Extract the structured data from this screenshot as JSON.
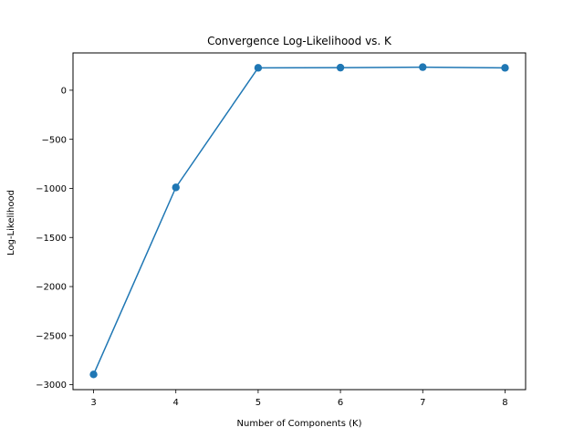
{
  "chart_data": {
    "type": "line",
    "title": "Convergence Log-Likelihood vs. K",
    "xlabel": "Number of Components (K)",
    "ylabel": "Log-Likelihood",
    "x": [
      3,
      4,
      5,
      6,
      7,
      8
    ],
    "series": [
      {
        "values": [
          -2895,
          -990,
          228,
          230,
          235,
          228
        ],
        "color": "#1f77b4",
        "marker": "circle"
      }
    ],
    "xlim": [
      2.75,
      8.25
    ],
    "ylim": [
      -3050,
      380
    ],
    "xticks": [
      3,
      4,
      5,
      6,
      7,
      8
    ],
    "yticks": [
      0,
      -500,
      -1000,
      -1500,
      -2000,
      -2500,
      -3000
    ],
    "xtick_labels": [
      "3",
      "4",
      "5",
      "6",
      "7",
      "8"
    ],
    "ytick_labels": [
      "0",
      "−500",
      "−1000",
      "−1500",
      "−2000",
      "−2500",
      "−3000"
    ],
    "grid": false,
    "legend": "none"
  }
}
